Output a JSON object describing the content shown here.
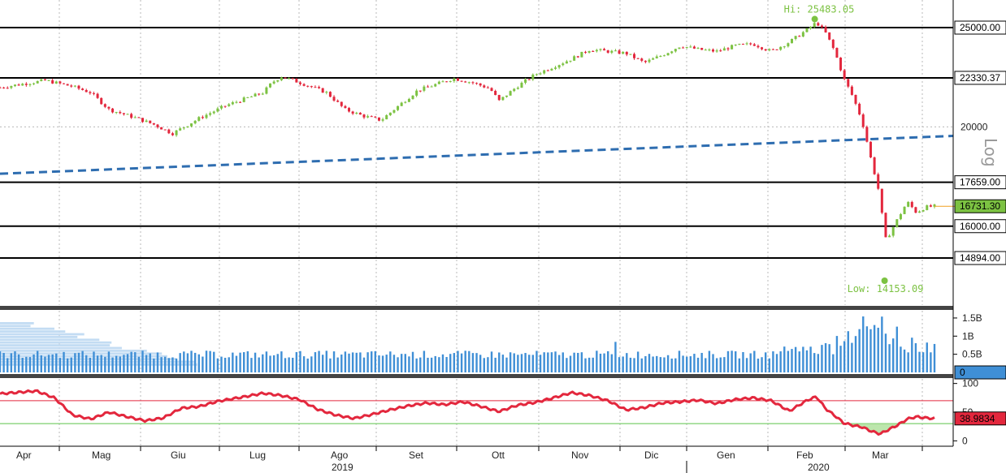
{
  "chart_data": [
    {
      "type": "candlestick",
      "title": "",
      "scale": "log",
      "scale_label": "Log",
      "yticks": [
        "20000"
      ],
      "levels": [
        "25000.00",
        "22330.37",
        "17659.00",
        "16000.00",
        "14894.00"
      ],
      "last_price": "16731.30",
      "annotations": {
        "high": "Hi: 25483.05",
        "low": "Low: 14153.09"
      },
      "hi_value": 25483.05,
      "low_value": 14153.09,
      "levels_numeric": [
        25000,
        22330.37,
        17659,
        16000,
        14894
      ],
      "last_value": 16731.3,
      "ylim": [
        13400,
        26600
      ],
      "trendline": {
        "start": 18000,
        "end": 19600,
        "style": "dashed",
        "color": "#2e6db0"
      },
      "price_path": [
        [
          0,
          21850
        ],
        [
          5,
          22200
        ],
        [
          8,
          21900
        ],
        [
          10,
          21600
        ],
        [
          12,
          20800
        ],
        [
          15,
          20400
        ],
        [
          17,
          20100
        ],
        [
          19,
          19700
        ],
        [
          22,
          20400
        ],
        [
          25,
          21000
        ],
        [
          27,
          21300
        ],
        [
          29,
          21600
        ],
        [
          30,
          22100
        ],
        [
          31,
          22400
        ],
        [
          33,
          22100
        ],
        [
          36,
          21600
        ],
        [
          38,
          20800
        ],
        [
          40,
          20500
        ],
        [
          42,
          20300
        ],
        [
          44,
          21000
        ],
        [
          46,
          21700
        ],
        [
          48,
          22000
        ],
        [
          50,
          22300
        ],
        [
          52,
          22100
        ],
        [
          54,
          21800
        ],
        [
          55,
          21200
        ],
        [
          57,
          21900
        ],
        [
          59,
          22500
        ],
        [
          61,
          22900
        ],
        [
          63,
          23300
        ],
        [
          65,
          23800
        ],
        [
          67,
          23700
        ],
        [
          69,
          23600
        ],
        [
          71,
          23100
        ],
        [
          73,
          23500
        ],
        [
          75,
          24000
        ],
        [
          77,
          23800
        ],
        [
          79,
          23700
        ],
        [
          81,
          24000
        ],
        [
          83,
          24100
        ],
        [
          85,
          23700
        ],
        [
          87,
          24200
        ],
        [
          89,
          24900
        ],
        [
          90,
          25300
        ],
        [
          91,
          24700
        ],
        [
          92,
          23700
        ],
        [
          93,
          22300
        ],
        [
          94,
          21400
        ],
        [
          95,
          20300
        ],
        [
          96,
          18600
        ],
        [
          97,
          17100
        ],
        [
          97.5,
          15500
        ],
        [
          98,
          15700
        ],
        [
          99,
          16300
        ],
        [
          100,
          16900
        ],
        [
          101,
          16500
        ],
        [
          102,
          16700
        ],
        [
          103,
          16731
        ]
      ],
      "palette": {
        "up": "#7cc242",
        "down": "#e3273d",
        "volume": "#3f8fd6",
        "rsi": "#e3273d",
        "level": "#000000"
      }
    },
    {
      "type": "bar",
      "series": [
        {
          "name": "",
          "values_note": "daily volume"
        }
      ],
      "yticks": [
        "1.5B",
        "1B",
        "0.5B"
      ],
      "last_value_tag": "0",
      "ylim": [
        0,
        1.7
      ]
    },
    {
      "type": "line",
      "yticks": [
        "100",
        "0"
      ],
      "hidden_tick": "50",
      "last_value_tag": "38.9834",
      "ylim": [
        -8,
        108
      ],
      "bands": [
        70,
        30
      ],
      "path": [
        [
          0,
          82
        ],
        [
          4,
          87
        ],
        [
          6,
          75
        ],
        [
          8,
          45
        ],
        [
          10,
          38
        ],
        [
          12,
          50
        ],
        [
          14,
          42
        ],
        [
          16,
          35
        ],
        [
          18,
          40
        ],
        [
          20,
          57
        ],
        [
          22,
          60
        ],
        [
          24,
          69
        ],
        [
          27,
          77
        ],
        [
          29,
          83
        ],
        [
          31,
          79
        ],
        [
          33,
          72
        ],
        [
          35,
          55
        ],
        [
          37,
          45
        ],
        [
          39,
          39
        ],
        [
          41,
          46
        ],
        [
          43,
          54
        ],
        [
          45,
          61
        ],
        [
          47,
          66
        ],
        [
          49,
          63
        ],
        [
          51,
          68
        ],
        [
          53,
          60
        ],
        [
          55,
          51
        ],
        [
          57,
          62
        ],
        [
          59,
          67
        ],
        [
          61,
          75
        ],
        [
          63,
          84
        ],
        [
          65,
          79
        ],
        [
          67,
          70
        ],
        [
          69,
          54
        ],
        [
          71,
          58
        ],
        [
          73,
          66
        ],
        [
          75,
          68
        ],
        [
          77,
          71
        ],
        [
          79,
          65
        ],
        [
          81,
          72
        ],
        [
          83,
          75
        ],
        [
          85,
          70
        ],
        [
          87,
          52
        ],
        [
          89,
          71
        ],
        [
          90,
          77
        ],
        [
          91,
          56
        ],
        [
          92,
          44
        ],
        [
          93,
          31
        ],
        [
          94,
          27
        ],
        [
          95,
          24
        ],
        [
          96,
          17
        ],
        [
          97,
          12
        ],
        [
          98,
          20
        ],
        [
          99,
          28
        ],
        [
          100,
          38
        ],
        [
          101,
          42
        ],
        [
          102,
          40
        ],
        [
          103,
          39
        ]
      ]
    }
  ],
  "xaxis": {
    "months": [
      "Apr",
      "Mag",
      "Giu",
      "Lug",
      "Ago",
      "Set",
      "Ott",
      "Nov",
      "Dic",
      "Gen",
      "Feb",
      "Mar"
    ],
    "years": [
      "2019",
      "2020"
    ]
  }
}
